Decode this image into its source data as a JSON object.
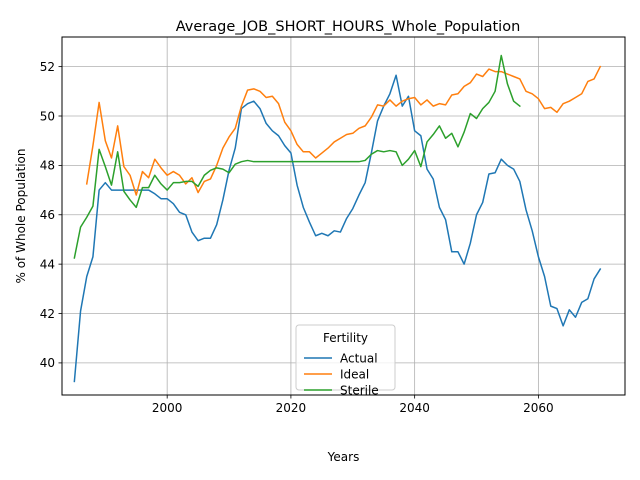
{
  "chart_data": {
    "type": "line",
    "title": "Average_JOB_SHORT_HOURS_Whole_Population",
    "xlabel": "Years",
    "ylabel": "% of Whole Population",
    "xlim": [
      1983,
      2074
    ],
    "ylim": [
      38.7,
      53.2
    ],
    "xticks": [
      2000,
      2020,
      2040,
      2060
    ],
    "yticks": [
      40,
      42,
      44,
      46,
      48,
      50,
      52
    ],
    "grid": true,
    "legend": {
      "title": "Fertility",
      "placement": "lower center"
    },
    "series": [
      {
        "name": "Actual",
        "color": "#1f77b4",
        "points": [
          [
            1985,
            39.25
          ],
          [
            1986,
            42.1
          ],
          [
            1987,
            43.5
          ],
          [
            1988,
            44.3
          ],
          [
            1989,
            47.0
          ],
          [
            1990,
            47.3
          ],
          [
            1991,
            47.0
          ],
          [
            1992,
            47.0
          ],
          [
            1993,
            47.0
          ],
          [
            1994,
            47.0
          ],
          [
            1995,
            47.0
          ],
          [
            1996,
            47.0
          ],
          [
            1997,
            47.0
          ],
          [
            1998,
            46.85
          ],
          [
            1999,
            46.65
          ],
          [
            2000,
            46.65
          ],
          [
            2001,
            46.45
          ],
          [
            2002,
            46.1
          ],
          [
            2003,
            46.0
          ],
          [
            2004,
            45.3
          ],
          [
            2005,
            44.95
          ],
          [
            2006,
            45.05
          ],
          [
            2007,
            45.05
          ],
          [
            2008,
            45.6
          ],
          [
            2009,
            46.6
          ],
          [
            2010,
            47.8
          ],
          [
            2011,
            48.7
          ],
          [
            2012,
            50.3
          ],
          [
            2013,
            50.5
          ],
          [
            2014,
            50.6
          ],
          [
            2015,
            50.3
          ],
          [
            2016,
            49.7
          ],
          [
            2017,
            49.4
          ],
          [
            2018,
            49.2
          ],
          [
            2019,
            48.8
          ],
          [
            2020,
            48.5
          ],
          [
            2021,
            47.2
          ],
          [
            2022,
            46.3
          ],
          [
            2023,
            45.7
          ],
          [
            2024,
            45.15
          ],
          [
            2025,
            45.25
          ],
          [
            2026,
            45.15
          ],
          [
            2027,
            45.35
          ],
          [
            2028,
            45.3
          ],
          [
            2029,
            45.85
          ],
          [
            2030,
            46.25
          ],
          [
            2031,
            46.8
          ],
          [
            2032,
            47.3
          ],
          [
            2033,
            48.5
          ],
          [
            2034,
            49.8
          ],
          [
            2035,
            50.4
          ],
          [
            2036,
            50.9
          ],
          [
            2037,
            51.65
          ],
          [
            2038,
            50.4
          ],
          [
            2039,
            50.8
          ],
          [
            2040,
            49.4
          ],
          [
            2041,
            49.2
          ],
          [
            2042,
            47.85
          ],
          [
            2043,
            47.45
          ],
          [
            2044,
            46.3
          ],
          [
            2045,
            45.8
          ],
          [
            2046,
            44.5
          ],
          [
            2047,
            44.5
          ],
          [
            2048,
            44.0
          ],
          [
            2049,
            44.85
          ],
          [
            2050,
            46.0
          ],
          [
            2051,
            46.5
          ],
          [
            2052,
            47.65
          ],
          [
            2053,
            47.7
          ],
          [
            2054,
            48.25
          ],
          [
            2055,
            48.0
          ],
          [
            2056,
            47.85
          ],
          [
            2057,
            47.35
          ],
          [
            2058,
            46.2
          ],
          [
            2059,
            45.35
          ],
          [
            2060,
            44.3
          ],
          [
            2061,
            43.5
          ],
          [
            2062,
            42.3
          ],
          [
            2063,
            42.2
          ],
          [
            2064,
            41.5
          ],
          [
            2065,
            42.15
          ],
          [
            2066,
            41.85
          ],
          [
            2067,
            42.45
          ],
          [
            2068,
            42.6
          ],
          [
            2069,
            43.4
          ],
          [
            2070,
            43.8
          ]
        ]
      },
      {
        "name": "Ideal",
        "color": "#ff7f0e",
        "points": [
          [
            1987,
            47.25
          ],
          [
            1988,
            48.8
          ],
          [
            1989,
            50.55
          ],
          [
            1990,
            49.0
          ],
          [
            1991,
            48.3
          ],
          [
            1992,
            49.6
          ],
          [
            1993,
            47.95
          ],
          [
            1994,
            47.6
          ],
          [
            1995,
            46.8
          ],
          [
            1996,
            47.75
          ],
          [
            1997,
            47.5
          ],
          [
            1998,
            48.25
          ],
          [
            1999,
            47.9
          ],
          [
            2000,
            47.6
          ],
          [
            2001,
            47.75
          ],
          [
            2002,
            47.6
          ],
          [
            2003,
            47.25
          ],
          [
            2004,
            47.5
          ],
          [
            2005,
            46.9
          ],
          [
            2006,
            47.35
          ],
          [
            2007,
            47.45
          ],
          [
            2008,
            48.0
          ],
          [
            2009,
            48.7
          ],
          [
            2010,
            49.15
          ],
          [
            2011,
            49.5
          ],
          [
            2012,
            50.4
          ],
          [
            2013,
            51.05
          ],
          [
            2014,
            51.1
          ],
          [
            2015,
            51.0
          ],
          [
            2016,
            50.75
          ],
          [
            2017,
            50.8
          ],
          [
            2018,
            50.5
          ],
          [
            2019,
            49.75
          ],
          [
            2020,
            49.4
          ],
          [
            2021,
            48.85
          ],
          [
            2022,
            48.55
          ],
          [
            2023,
            48.55
          ],
          [
            2024,
            48.3
          ],
          [
            2025,
            48.5
          ],
          [
            2026,
            48.7
          ],
          [
            2027,
            48.95
          ],
          [
            2028,
            49.1
          ],
          [
            2029,
            49.25
          ],
          [
            2030,
            49.3
          ],
          [
            2031,
            49.5
          ],
          [
            2032,
            49.6
          ],
          [
            2033,
            49.95
          ],
          [
            2034,
            50.45
          ],
          [
            2035,
            50.4
          ],
          [
            2036,
            50.65
          ],
          [
            2037,
            50.4
          ],
          [
            2038,
            50.6
          ],
          [
            2039,
            50.7
          ],
          [
            2040,
            50.75
          ],
          [
            2041,
            50.45
          ],
          [
            2042,
            50.65
          ],
          [
            2043,
            50.4
          ],
          [
            2044,
            50.5
          ],
          [
            2045,
            50.45
          ],
          [
            2046,
            50.85
          ],
          [
            2047,
            50.9
          ],
          [
            2048,
            51.2
          ],
          [
            2049,
            51.35
          ],
          [
            2050,
            51.7
          ],
          [
            2051,
            51.6
          ],
          [
            2052,
            51.9
          ],
          [
            2053,
            51.8
          ],
          [
            2054,
            51.8
          ],
          [
            2055,
            51.7
          ],
          [
            2056,
            51.6
          ],
          [
            2057,
            51.5
          ],
          [
            2058,
            51.0
          ],
          [
            2059,
            50.9
          ],
          [
            2060,
            50.7
          ],
          [
            2061,
            50.3
          ],
          [
            2062,
            50.35
          ],
          [
            2063,
            50.15
          ],
          [
            2064,
            50.5
          ],
          [
            2065,
            50.6
          ],
          [
            2066,
            50.75
          ],
          [
            2067,
            50.9
          ],
          [
            2068,
            51.4
          ],
          [
            2069,
            51.5
          ],
          [
            2070,
            52.0
          ]
        ]
      },
      {
        "name": "Sterile",
        "color": "#2ca02c",
        "points": [
          [
            1985,
            44.25
          ],
          [
            1986,
            45.5
          ],
          [
            1987,
            45.9
          ],
          [
            1988,
            46.35
          ],
          [
            1989,
            48.65
          ],
          [
            1990,
            47.95
          ],
          [
            1991,
            47.2
          ],
          [
            1992,
            48.55
          ],
          [
            1993,
            46.95
          ],
          [
            1994,
            46.6
          ],
          [
            1995,
            46.3
          ],
          [
            1996,
            47.1
          ],
          [
            1997,
            47.1
          ],
          [
            1998,
            47.6
          ],
          [
            1999,
            47.25
          ],
          [
            2000,
            47.0
          ],
          [
            2001,
            47.3
          ],
          [
            2002,
            47.3
          ],
          [
            2003,
            47.35
          ],
          [
            2004,
            47.35
          ],
          [
            2005,
            47.15
          ],
          [
            2006,
            47.6
          ],
          [
            2007,
            47.8
          ],
          [
            2008,
            47.9
          ],
          [
            2009,
            47.85
          ],
          [
            2010,
            47.7
          ],
          [
            2011,
            48.05
          ],
          [
            2012,
            48.15
          ],
          [
            2013,
            48.2
          ],
          [
            2014,
            48.15
          ],
          [
            2015,
            48.15
          ],
          [
            2016,
            48.15
          ],
          [
            2017,
            48.15
          ],
          [
            2018,
            48.15
          ],
          [
            2019,
            48.15
          ],
          [
            2020,
            48.15
          ],
          [
            2021,
            48.15
          ],
          [
            2022,
            48.15
          ],
          [
            2023,
            48.15
          ],
          [
            2024,
            48.15
          ],
          [
            2025,
            48.15
          ],
          [
            2026,
            48.15
          ],
          [
            2027,
            48.15
          ],
          [
            2028,
            48.15
          ],
          [
            2029,
            48.15
          ],
          [
            2030,
            48.15
          ],
          [
            2031,
            48.15
          ],
          [
            2032,
            48.2
          ],
          [
            2033,
            48.45
          ],
          [
            2034,
            48.6
          ],
          [
            2035,
            48.55
          ],
          [
            2036,
            48.6
          ],
          [
            2037,
            48.55
          ],
          [
            2038,
            48.0
          ],
          [
            2039,
            48.25
          ],
          [
            2040,
            48.6
          ],
          [
            2041,
            47.95
          ],
          [
            2042,
            48.95
          ],
          [
            2043,
            49.25
          ],
          [
            2044,
            49.6
          ],
          [
            2045,
            49.1
          ],
          [
            2046,
            49.3
          ],
          [
            2047,
            48.75
          ],
          [
            2048,
            49.35
          ],
          [
            2049,
            50.1
          ],
          [
            2050,
            49.9
          ],
          [
            2051,
            50.3
          ],
          [
            2052,
            50.55
          ],
          [
            2053,
            51.0
          ],
          [
            2054,
            52.45
          ],
          [
            2055,
            51.3
          ],
          [
            2056,
            50.6
          ],
          [
            2057,
            50.4
          ]
        ]
      }
    ]
  }
}
